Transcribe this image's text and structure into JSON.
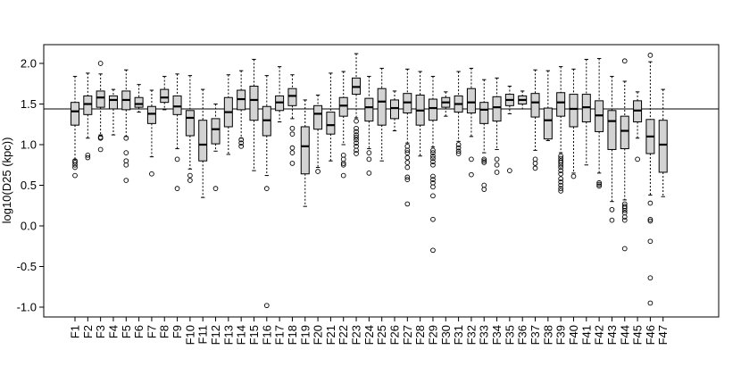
{
  "chart_data": {
    "type": "box",
    "ylabel": "log10(D25 (kpc))",
    "ylim": [
      -1.1,
      2.2
    ],
    "yticks": [
      -1.0,
      -0.5,
      0.0,
      0.5,
      1.0,
      1.5,
      2.0
    ],
    "ytick_labels": [
      "-1.0",
      "-0.5",
      "0.0",
      "0.5",
      "1.0",
      "1.5",
      "2.0"
    ],
    "reference_line": 1.44,
    "box_fill": "#d3d3d3",
    "categories": [
      "F1",
      "F2",
      "F3",
      "F4",
      "F5",
      "F6",
      "F7",
      "F8",
      "F9",
      "F10",
      "F11",
      "F12",
      "F13",
      "F14",
      "F15",
      "F16",
      "F17",
      "F18",
      "F19",
      "F20",
      "F21",
      "F22",
      "F23",
      "F24",
      "F25",
      "F26",
      "F27",
      "F28",
      "F29",
      "F30",
      "F31",
      "F32",
      "F33",
      "F34",
      "F35",
      "F36",
      "F37",
      "F38",
      "F39",
      "F40",
      "F41",
      "F42",
      "F43",
      "F44",
      "F45",
      "F46",
      "F47"
    ],
    "boxes": [
      {
        "name": "F1",
        "whislo": 0.82,
        "q1": 1.24,
        "med": 1.41,
        "q3": 1.52,
        "whishi": 1.84,
        "outliers": [
          0.62,
          0.72,
          0.75,
          0.78,
          0.8
        ]
      },
      {
        "name": "F2",
        "whislo": 1.08,
        "q1": 1.37,
        "med": 1.5,
        "q3": 1.6,
        "whishi": 1.88,
        "outliers": [
          0.84,
          0.87
        ]
      },
      {
        "name": "F3",
        "whislo": 1.12,
        "q1": 1.46,
        "med": 1.58,
        "q3": 1.66,
        "whishi": 1.87,
        "outliers": [
          2.0,
          1.09,
          1.08,
          0.94
        ]
      },
      {
        "name": "F4",
        "whislo": 1.12,
        "q1": 1.44,
        "med": 1.55,
        "q3": 1.6,
        "whishi": 1.68,
        "outliers": []
      },
      {
        "name": "F5",
        "whislo": 1.1,
        "q1": 1.43,
        "med": 1.55,
        "q3": 1.66,
        "whishi": 1.92,
        "outliers": [
          1.08,
          0.9,
          0.8,
          0.75,
          0.56
        ]
      },
      {
        "name": "F6",
        "whislo": 1.4,
        "q1": 1.46,
        "med": 1.5,
        "q3": 1.58,
        "whishi": 1.74,
        "outliers": []
      },
      {
        "name": "F7",
        "whislo": 0.85,
        "q1": 1.26,
        "med": 1.38,
        "q3": 1.47,
        "whishi": 1.67,
        "outliers": [
          0.64
        ]
      },
      {
        "name": "F8",
        "whislo": 1.43,
        "q1": 1.52,
        "med": 1.58,
        "q3": 1.68,
        "whishi": 1.84,
        "outliers": []
      },
      {
        "name": "F9",
        "whislo": 0.95,
        "q1": 1.37,
        "med": 1.47,
        "q3": 1.6,
        "whishi": 1.87,
        "outliers": [
          0.82,
          0.46
        ]
      },
      {
        "name": "F10",
        "whislo": 0.7,
        "q1": 1.11,
        "med": 1.33,
        "q3": 1.42,
        "whishi": 1.85,
        "outliers": [
          0.62,
          0.56
        ]
      },
      {
        "name": "F11",
        "whislo": 0.35,
        "q1": 0.8,
        "med": 1.0,
        "q3": 1.3,
        "whishi": 1.68,
        "outliers": []
      },
      {
        "name": "F12",
        "whislo": 0.92,
        "q1": 1.01,
        "med": 1.19,
        "q3": 1.32,
        "whishi": 1.5,
        "outliers": [
          0.46
        ]
      },
      {
        "name": "F13",
        "whislo": 0.88,
        "q1": 1.22,
        "med": 1.4,
        "q3": 1.58,
        "whishi": 1.86,
        "outliers": []
      },
      {
        "name": "F14",
        "whislo": 1.08,
        "q1": 1.43,
        "med": 1.56,
        "q3": 1.67,
        "whishi": 1.91,
        "outliers": [
          1.06,
          1.02,
          0.98
        ]
      },
      {
        "name": "F15",
        "whislo": 0.68,
        "q1": 1.3,
        "med": 1.55,
        "q3": 1.72,
        "whishi": 2.05,
        "outliers": []
      },
      {
        "name": "F16",
        "whislo": 0.62,
        "q1": 1.11,
        "med": 1.3,
        "q3": 1.47,
        "whishi": 1.85,
        "outliers": [
          0.46,
          -0.98
        ]
      },
      {
        "name": "F17",
        "whislo": 1.28,
        "q1": 1.42,
        "med": 1.52,
        "q3": 1.6,
        "whishi": 1.96,
        "outliers": []
      },
      {
        "name": "F18",
        "whislo": 1.32,
        "q1": 1.48,
        "med": 1.6,
        "q3": 1.69,
        "whishi": 1.86,
        "outliers": [
          1.2,
          1.13,
          0.96,
          0.9,
          0.77
        ]
      },
      {
        "name": "F19",
        "whislo": 0.24,
        "q1": 0.64,
        "med": 0.98,
        "q3": 1.22,
        "whishi": 1.55,
        "outliers": []
      },
      {
        "name": "F20",
        "whislo": 0.72,
        "q1": 1.19,
        "med": 1.38,
        "q3": 1.48,
        "whishi": 1.61,
        "outliers": [
          0.67
        ]
      },
      {
        "name": "F21",
        "whislo": 0.8,
        "q1": 1.13,
        "med": 1.24,
        "q3": 1.4,
        "whishi": 1.88,
        "outliers": []
      },
      {
        "name": "F22",
        "whislo": 1.0,
        "q1": 1.35,
        "med": 1.48,
        "q3": 1.58,
        "whishi": 1.9,
        "outliers": [
          0.87,
          0.82,
          0.77,
          0.75,
          0.62
        ]
      },
      {
        "name": "F23",
        "whislo": 1.33,
        "q1": 1.62,
        "med": 1.71,
        "q3": 1.82,
        "whishi": 2.12,
        "outliers": [
          1.29,
          1.2,
          1.16,
          1.12,
          1.09,
          1.06,
          1.02,
          0.98,
          0.93,
          0.89
        ]
      },
      {
        "name": "F24",
        "whislo": 0.95,
        "q1": 1.29,
        "med": 1.46,
        "q3": 1.57,
        "whishi": 1.84,
        "outliers": [
          0.9,
          0.82,
          0.65
        ]
      },
      {
        "name": "F25",
        "whislo": 0.8,
        "q1": 1.24,
        "med": 1.53,
        "q3": 1.69,
        "whishi": 1.94,
        "outliers": []
      },
      {
        "name": "F26",
        "whislo": 1.17,
        "q1": 1.32,
        "med": 1.45,
        "q3": 1.55,
        "whishi": 1.66,
        "outliers": []
      },
      {
        "name": "F27",
        "whislo": 1.02,
        "q1": 1.39,
        "med": 1.52,
        "q3": 1.63,
        "whishi": 1.93,
        "outliers": [
          0.98,
          0.93,
          0.9,
          0.84,
          0.78,
          0.72,
          0.6,
          0.57,
          0.27
        ]
      },
      {
        "name": "F28",
        "whislo": 0.86,
        "q1": 1.24,
        "med": 1.42,
        "q3": 1.61,
        "whishi": 1.9,
        "outliers": []
      },
      {
        "name": "F29",
        "whislo": 0.97,
        "q1": 1.3,
        "med": 1.45,
        "q3": 1.56,
        "whishi": 1.84,
        "outliers": [
          0.93,
          0.9,
          0.86,
          0.83,
          0.79,
          0.75,
          0.61,
          0.57,
          0.53,
          0.48,
          0.37,
          0.08,
          -0.3
        ]
      },
      {
        "name": "F30",
        "whislo": 1.35,
        "q1": 1.46,
        "med": 1.52,
        "q3": 1.58,
        "whishi": 1.65,
        "outliers": []
      },
      {
        "name": "F31",
        "whislo": 1.04,
        "q1": 1.4,
        "med": 1.5,
        "q3": 1.6,
        "whishi": 1.9,
        "outliers": [
          1.0,
          0.96,
          0.92,
          0.89
        ]
      },
      {
        "name": "F32",
        "whislo": 1.1,
        "q1": 1.39,
        "med": 1.52,
        "q3": 1.69,
        "whishi": 1.94,
        "outliers": [
          0.82,
          0.63
        ]
      },
      {
        "name": "F33",
        "whislo": 0.9,
        "q1": 1.26,
        "med": 1.43,
        "q3": 1.52,
        "whishi": 1.8,
        "outliers": [
          0.82,
          0.8,
          0.78,
          0.5,
          0.45
        ]
      },
      {
        "name": "F34",
        "whislo": 0.94,
        "q1": 1.29,
        "med": 1.46,
        "q3": 1.59,
        "whishi": 1.82,
        "outliers": [
          0.82,
          0.75,
          0.66
        ]
      },
      {
        "name": "F35",
        "whislo": 1.38,
        "q1": 1.48,
        "med": 1.55,
        "q3": 1.62,
        "whishi": 1.72,
        "outliers": [
          0.68
        ]
      },
      {
        "name": "F36",
        "whislo": 1.44,
        "q1": 1.5,
        "med": 1.55,
        "q3": 1.6,
        "whishi": 1.66,
        "outliers": []
      },
      {
        "name": "F37",
        "whislo": 0.93,
        "q1": 1.34,
        "med": 1.52,
        "q3": 1.63,
        "whishi": 1.92,
        "outliers": [
          0.82,
          0.77,
          0.71
        ]
      },
      {
        "name": "F38",
        "whislo": 1.05,
        "q1": 1.07,
        "med": 1.3,
        "q3": 1.45,
        "whishi": 1.91,
        "outliers": []
      },
      {
        "name": "F39",
        "whislo": 0.9,
        "q1": 1.35,
        "med": 1.52,
        "q3": 1.64,
        "whishi": 1.96,
        "outliers": [
          0.86,
          0.83,
          0.8,
          0.78,
          0.75,
          0.72,
          0.68,
          0.64,
          0.58,
          0.54,
          0.5,
          0.46,
          0.43
        ]
      },
      {
        "name": "F40",
        "whislo": 0.65,
        "q1": 1.22,
        "med": 1.44,
        "q3": 1.62,
        "whishi": 1.93,
        "outliers": [
          0.61
        ]
      },
      {
        "name": "F41",
        "whislo": 0.75,
        "q1": 1.28,
        "med": 1.46,
        "q3": 1.62,
        "whishi": 2.05,
        "outliers": []
      },
      {
        "name": "F42",
        "whislo": 0.65,
        "q1": 1.16,
        "med": 1.36,
        "q3": 1.54,
        "whishi": 2.06,
        "outliers": [
          0.53,
          0.51,
          0.49
        ]
      },
      {
        "name": "F43",
        "whislo": 0.3,
        "q1": 0.94,
        "med": 1.29,
        "q3": 1.42,
        "whishi": 1.84,
        "outliers": [
          0.2,
          0.07
        ]
      },
      {
        "name": "F44",
        "whislo": 0.32,
        "q1": 0.95,
        "med": 1.17,
        "q3": 1.35,
        "whishi": 1.78,
        "outliers": [
          2.03,
          0.27,
          0.24,
          0.22,
          0.19,
          0.16,
          0.11,
          0.07,
          -0.28
        ]
      },
      {
        "name": "F45",
        "whislo": 1.08,
        "q1": 1.28,
        "med": 1.42,
        "q3": 1.54,
        "whishi": 1.65,
        "outliers": [
          0.82
        ]
      },
      {
        "name": "F46",
        "whislo": 0.38,
        "q1": 0.89,
        "med": 1.1,
        "q3": 1.31,
        "whishi": 2.02,
        "outliers": [
          2.1,
          0.28,
          0.08,
          0.06,
          -0.19,
          -0.64,
          -0.95
        ]
      },
      {
        "name": "F47",
        "whislo": 0.36,
        "q1": 0.66,
        "med": 1.0,
        "q3": 1.3,
        "whishi": 1.68,
        "outliers": []
      }
    ]
  }
}
